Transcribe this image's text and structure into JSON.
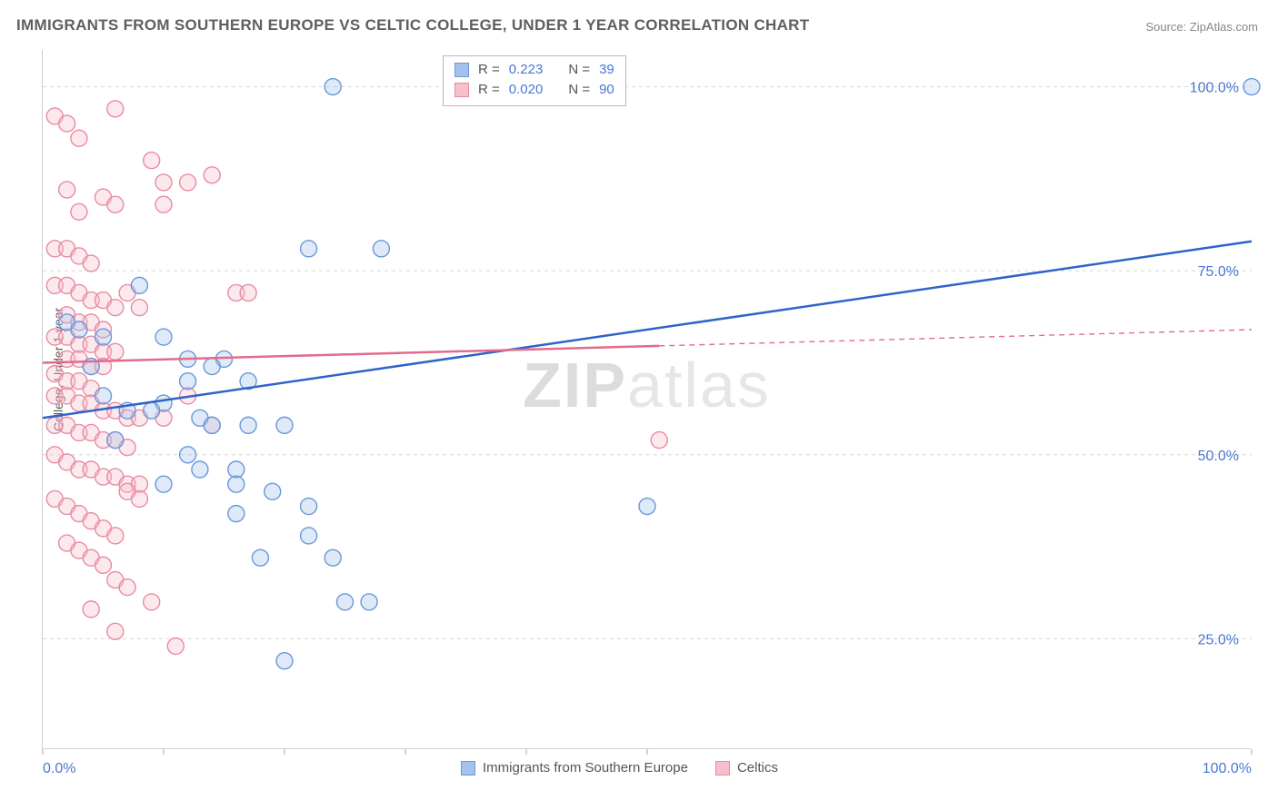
{
  "title": "IMMIGRANTS FROM SOUTHERN EUROPE VS CELTIC COLLEGE, UNDER 1 YEAR CORRELATION CHART",
  "source": "Source: ZipAtlas.com",
  "ylabel": "College, Under 1 year",
  "watermark_a": "ZIP",
  "watermark_b": "atlas",
  "chart": {
    "type": "scatter",
    "xlim": [
      0,
      100
    ],
    "ylim": [
      10,
      105
    ],
    "xticks": [
      0,
      10,
      20,
      30,
      40,
      50,
      100
    ],
    "xtick_labels": {
      "0": "0.0%",
      "100": "100.0%"
    },
    "yticks": [
      25,
      50,
      75,
      100
    ],
    "ytick_labels": {
      "25": "25.0%",
      "50": "50.0%",
      "75": "75.0%",
      "100": "100.0%"
    },
    "grid_color": "#d8d8d8",
    "axis_color": "#cfcfcf",
    "background_color": "#ffffff",
    "marker_radius": 9,
    "marker_fill_opacity": 0.35,
    "marker_stroke_width": 1.4,
    "line_width": 2.5
  },
  "series": [
    {
      "name": "Immigrants from Southern Europe",
      "color_fill": "#a4c2ec",
      "color_stroke": "#6a97d9",
      "stats": {
        "R": "0.223",
        "N": "39"
      },
      "trend": {
        "x1": 0,
        "y1": 55,
        "x2": 100,
        "y2": 79,
        "solid_until_x": 100,
        "color": "#2f63c9"
      },
      "points": [
        [
          2,
          68
        ],
        [
          3,
          67
        ],
        [
          5,
          66
        ],
        [
          4,
          62
        ],
        [
          8,
          73
        ],
        [
          10,
          66
        ],
        [
          10,
          57
        ],
        [
          12,
          60
        ],
        [
          5,
          58
        ],
        [
          7,
          56
        ],
        [
          9,
          56
        ],
        [
          13,
          55
        ],
        [
          14,
          54
        ],
        [
          13,
          48
        ],
        [
          16,
          48
        ],
        [
          17,
          54
        ],
        [
          12,
          50
        ],
        [
          22,
          78
        ],
        [
          24,
          100
        ],
        [
          28,
          78
        ],
        [
          15,
          63
        ],
        [
          12,
          63
        ],
        [
          22,
          43
        ],
        [
          22,
          39
        ],
        [
          16,
          42
        ],
        [
          25,
          30
        ],
        [
          27,
          30
        ],
        [
          20,
          22
        ],
        [
          18,
          36
        ],
        [
          24,
          36
        ],
        [
          20,
          54
        ],
        [
          17,
          60
        ],
        [
          16,
          46
        ],
        [
          19,
          45
        ],
        [
          14,
          62
        ],
        [
          10,
          46
        ],
        [
          50,
          43
        ],
        [
          100,
          100
        ],
        [
          6,
          52
        ]
      ]
    },
    {
      "name": "Celtics",
      "color_fill": "#f6bfcb",
      "color_stroke": "#e88ba3",
      "stats": {
        "R": "0.020",
        "N": "90"
      },
      "trend": {
        "x1": 0,
        "y1": 62.5,
        "x2": 100,
        "y2": 67,
        "solid_until_x": 51,
        "color": "#e36b8b"
      },
      "points": [
        [
          1,
          96
        ],
        [
          2,
          95
        ],
        [
          3,
          93
        ],
        [
          6,
          97
        ],
        [
          9,
          90
        ],
        [
          10,
          87
        ],
        [
          14,
          88
        ],
        [
          2,
          86
        ],
        [
          3,
          83
        ],
        [
          5,
          85
        ],
        [
          1,
          78
        ],
        [
          2,
          78
        ],
        [
          3,
          77
        ],
        [
          4,
          76
        ],
        [
          6,
          84
        ],
        [
          10,
          84
        ],
        [
          12,
          87
        ],
        [
          16,
          72
        ],
        [
          1,
          73
        ],
        [
          2,
          73
        ],
        [
          3,
          72
        ],
        [
          4,
          71
        ],
        [
          5,
          71
        ],
        [
          6,
          70
        ],
        [
          7,
          72
        ],
        [
          8,
          70
        ],
        [
          2,
          69
        ],
        [
          3,
          68
        ],
        [
          4,
          68
        ],
        [
          5,
          67
        ],
        [
          1,
          66
        ],
        [
          2,
          66
        ],
        [
          3,
          65
        ],
        [
          4,
          65
        ],
        [
          5,
          64
        ],
        [
          6,
          64
        ],
        [
          2,
          63
        ],
        [
          3,
          63
        ],
        [
          4,
          62
        ],
        [
          5,
          62
        ],
        [
          1,
          61
        ],
        [
          2,
          60
        ],
        [
          3,
          60
        ],
        [
          4,
          59
        ],
        [
          1,
          58
        ],
        [
          2,
          58
        ],
        [
          3,
          57
        ],
        [
          4,
          57
        ],
        [
          5,
          56
        ],
        [
          6,
          56
        ],
        [
          7,
          55
        ],
        [
          8,
          55
        ],
        [
          1,
          54
        ],
        [
          2,
          54
        ],
        [
          3,
          53
        ],
        [
          4,
          53
        ],
        [
          5,
          52
        ],
        [
          6,
          52
        ],
        [
          7,
          51
        ],
        [
          1,
          50
        ],
        [
          2,
          49
        ],
        [
          3,
          48
        ],
        [
          4,
          48
        ],
        [
          5,
          47
        ],
        [
          6,
          47
        ],
        [
          7,
          46
        ],
        [
          8,
          46
        ],
        [
          1,
          44
        ],
        [
          2,
          43
        ],
        [
          3,
          42
        ],
        [
          4,
          41
        ],
        [
          5,
          40
        ],
        [
          6,
          39
        ],
        [
          7,
          45
        ],
        [
          8,
          44
        ],
        [
          2,
          38
        ],
        [
          3,
          37
        ],
        [
          4,
          36
        ],
        [
          5,
          35
        ],
        [
          6,
          33
        ],
        [
          7,
          32
        ],
        [
          9,
          30
        ],
        [
          4,
          29
        ],
        [
          6,
          26
        ],
        [
          11,
          24
        ],
        [
          10,
          55
        ],
        [
          12,
          58
        ],
        [
          14,
          54
        ],
        [
          17,
          72
        ],
        [
          51,
          52
        ]
      ]
    }
  ],
  "legend_stats_labels": {
    "R": "R =",
    "N": "N ="
  },
  "bottom_legend": [
    {
      "label": "Immigrants from Southern Europe",
      "fill": "#a4c2ec",
      "stroke": "#6a97d9"
    },
    {
      "label": "Celtics",
      "fill": "#f6bfcb",
      "stroke": "#e88ba3"
    }
  ]
}
